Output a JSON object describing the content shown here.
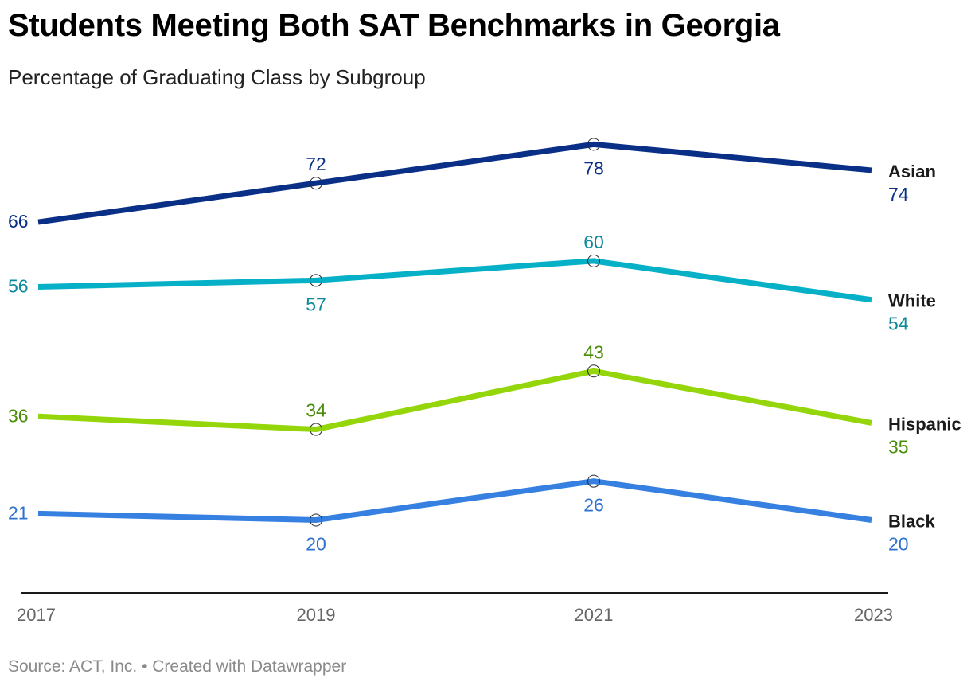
{
  "title": "Students Meeting Both SAT Benchmarks in Georgia",
  "subtitle": "Percentage of Graduating Class by Subgroup",
  "source": "Source: ACT, Inc. • Created with Datawrapper",
  "chart_data": {
    "type": "line",
    "title": "Students Meeting Both SAT Benchmarks in Georgia",
    "subtitle": "Percentage of Graduating Class by Subgroup",
    "xlabel": "",
    "ylabel": "",
    "x": [
      "2017",
      "2019",
      "2021",
      "2023"
    ],
    "ylim": [
      0,
      100
    ],
    "grid": false,
    "legend": "direct labels at right end of lines",
    "series": [
      {
        "name": "Asian",
        "values": [
          66,
          72,
          78,
          74
        ],
        "color": "#0a2f87",
        "label_color": "#0a2f87",
        "label_pos": [
          "left",
          "above",
          "below",
          "end"
        ]
      },
      {
        "name": "White",
        "values": [
          56,
          57,
          60,
          54
        ],
        "color": "#06b0c7",
        "label_color": "#0b8a9c",
        "label_pos": [
          "left",
          "below",
          "above",
          "end"
        ]
      },
      {
        "name": "Hispanic",
        "values": [
          36,
          34,
          43,
          35
        ],
        "color": "#94d60a",
        "label_color": "#4b8c0a",
        "label_pos": [
          "left",
          "above",
          "above",
          "end"
        ]
      },
      {
        "name": "Black",
        "values": [
          21,
          20,
          26,
          20
        ],
        "color": "#3580e0",
        "label_color": "#2e72cf",
        "label_pos": [
          "left",
          "below",
          "below",
          "end"
        ]
      }
    ]
  }
}
